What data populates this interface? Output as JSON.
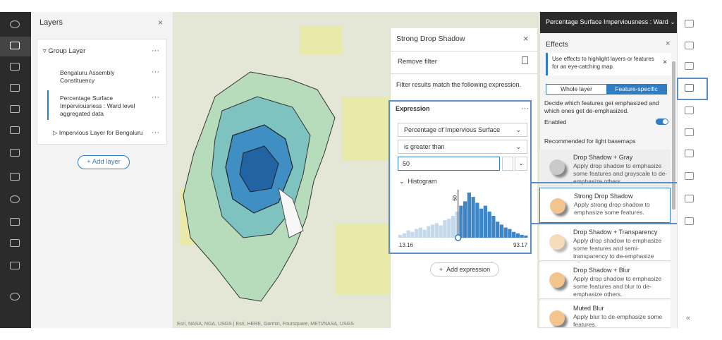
{
  "layers_panel": {
    "title": "Layers",
    "close": "×",
    "group": {
      "label": "Group Layer",
      "menu": "···"
    },
    "items": [
      {
        "label": "Bengaluru Assembly Constituency",
        "menu": "···"
      },
      {
        "label": "Percentage Surface Imperviousness : Ward level aggregated data",
        "menu": "···"
      },
      {
        "label": "Impervious Layer for Bengaluru",
        "menu": "···"
      }
    ],
    "add_layer": "Add layer"
  },
  "map": {
    "attribution": "Esri, NASA, NGA, USGS | Esri, HERE, Garmin, Foursquare, METI/NASA, USGS"
  },
  "filter_panel": {
    "title": "Strong Drop Shadow",
    "close": "×",
    "remove_filter": "Remove filter",
    "description": "Filter results match the following expression.",
    "expression": {
      "title": "Expression",
      "menu": "···",
      "field": "Percentage of Impervious Surface",
      "operator": "is greater than",
      "value": 50,
      "histogram": {
        "title": "Histogram",
        "min": 13.16,
        "max": 93.17,
        "counts": [
          4,
          6,
          10,
          8,
          12,
          14,
          11,
          16,
          18,
          20,
          17,
          24,
          26,
          30,
          36,
          44,
          50,
          62,
          56,
          48,
          40,
          44,
          36,
          30,
          22,
          18,
          14,
          12,
          8,
          6,
          4,
          3
        ]
      }
    },
    "add_expression": "Add expression"
  },
  "effects_panel": {
    "layer_title": "Percentage Surface Imperviousness : Ward",
    "title": "Effects",
    "close": "×",
    "tip": "Use effects to highlight layers or features for an eye-catching map.",
    "tip_close": "×",
    "tabs": [
      "Whole layer",
      "Feature-specific"
    ],
    "description": "Decide which features get emphasized and which ones get de-emphasized.",
    "enabled_label": "Enabled",
    "enabled": true,
    "section": "Recommended for light basemaps",
    "effects": [
      {
        "name": "Drop Shadow + Gray",
        "description": "Apply drop shadow to emphasize some features and grayscale to de-emphasize others."
      },
      {
        "name": "Strong Drop Shadow",
        "description": "Apply strong drop shadow to emphasize some features."
      },
      {
        "name": "Drop Shadow + Transparency",
        "description": "Apply drop shadow to emphasize some features and semi-transparency to de-emphasize others."
      },
      {
        "name": "Drop Shadow + Blur",
        "description": "Apply drop shadow to emphasize some features and blur to de-emphasize others."
      },
      {
        "name": "Muted Blur",
        "description": "Apply blur to de-emphasize some features."
      }
    ]
  }
}
